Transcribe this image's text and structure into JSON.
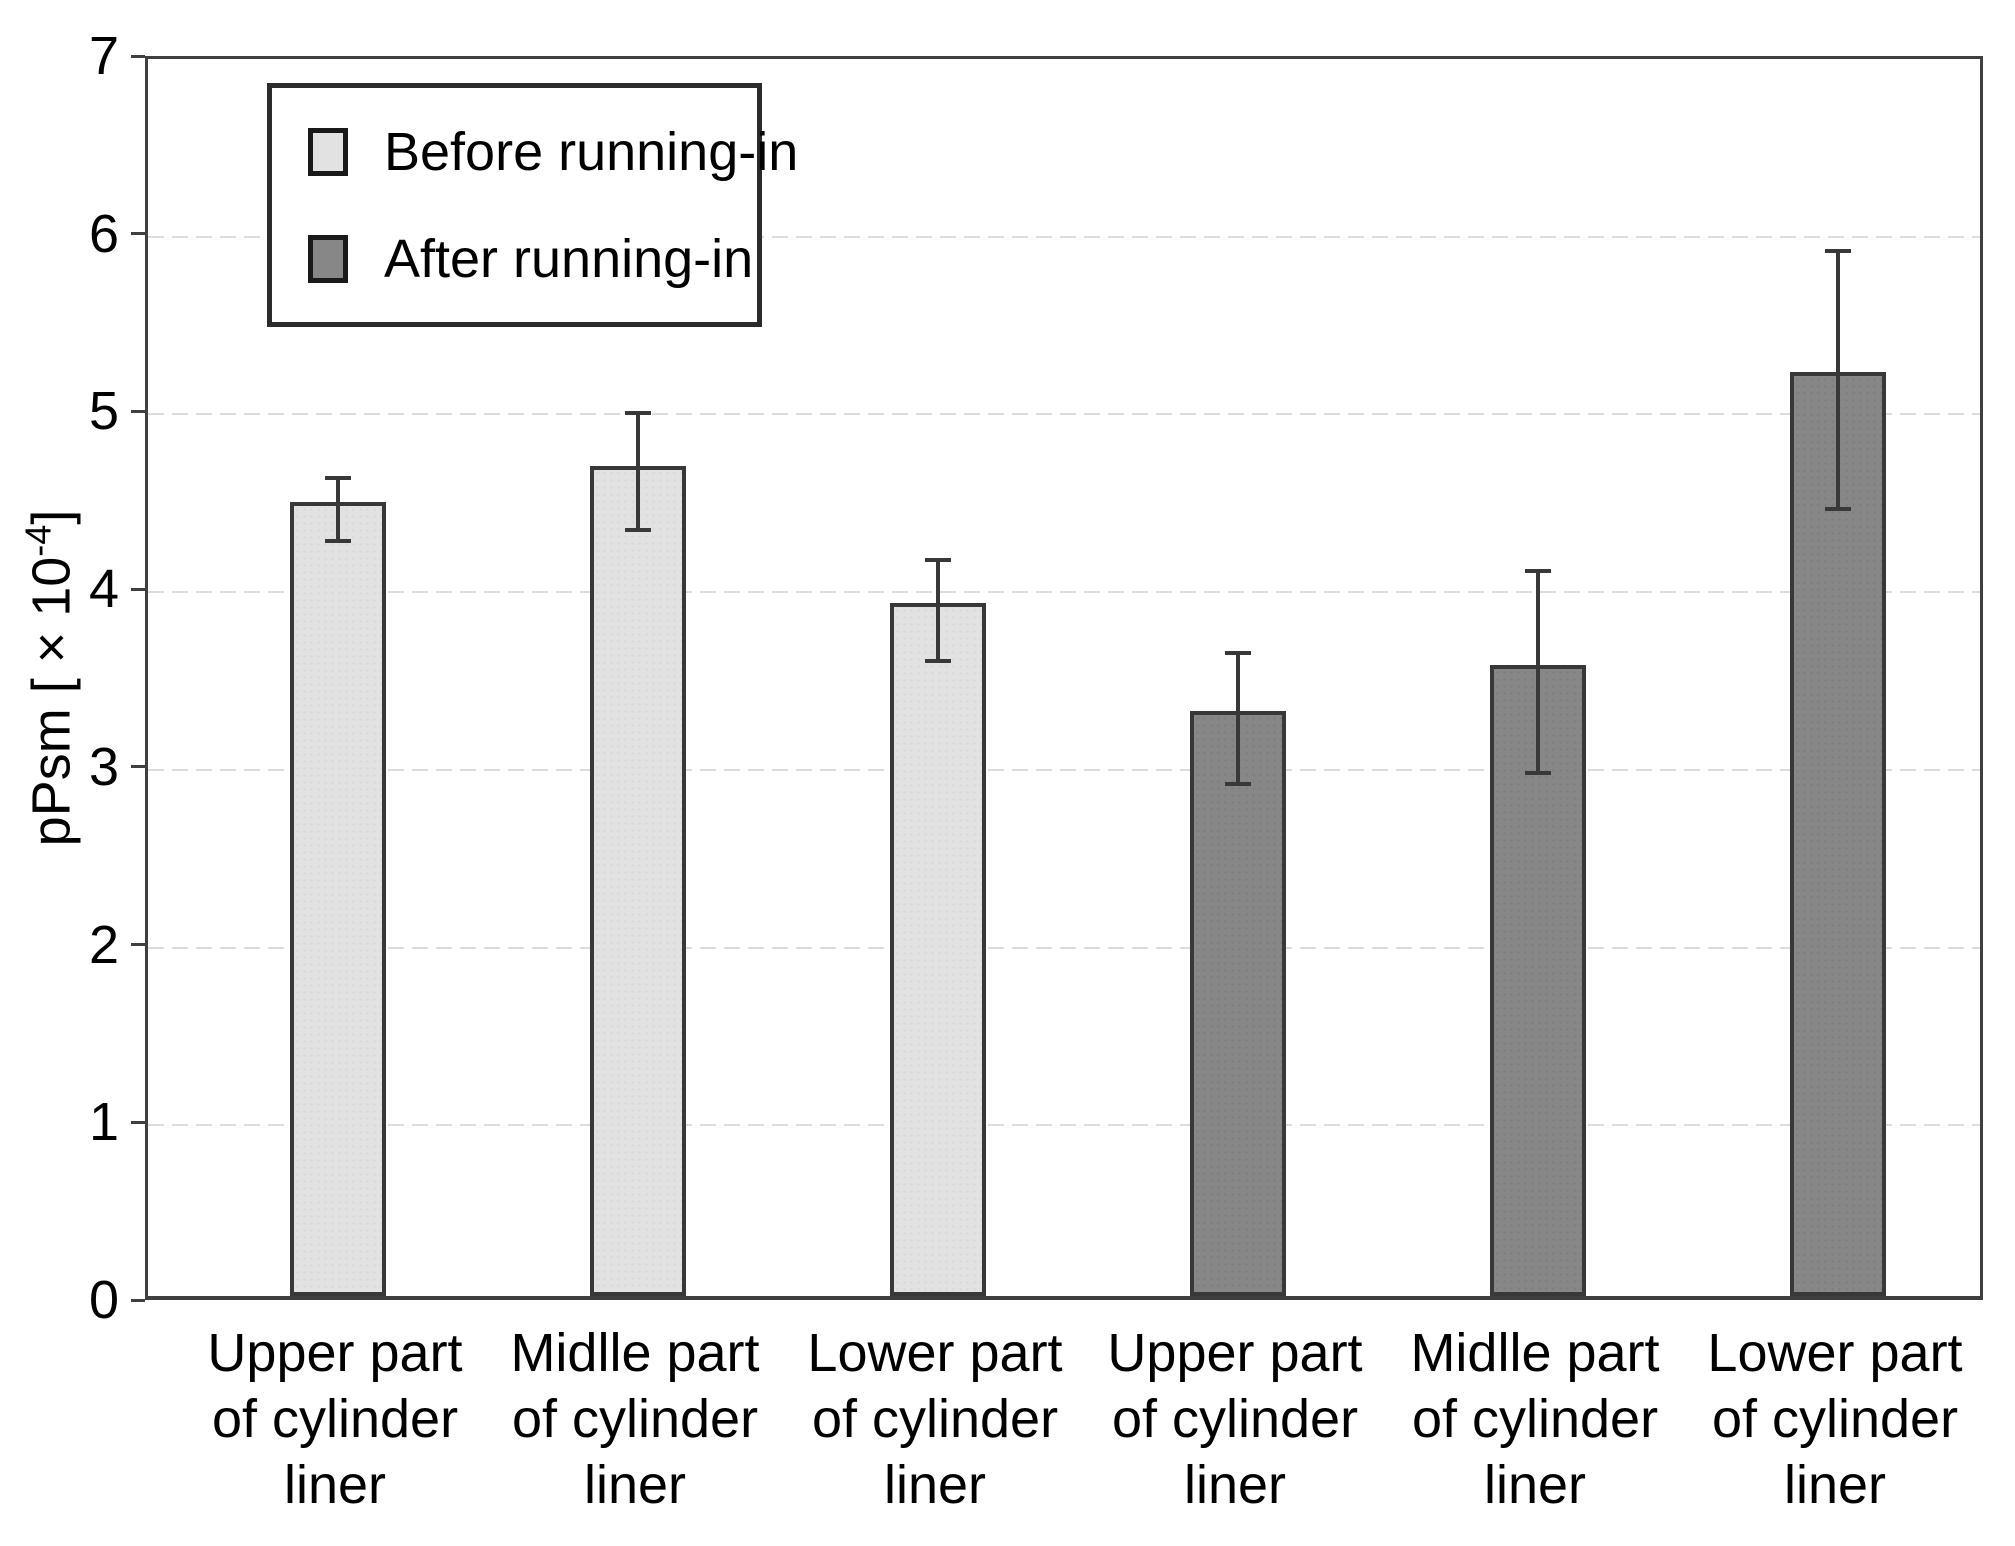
{
  "colors": {
    "background": "#ffffff",
    "axis": "#3f3f3f",
    "gridline": "#dcdcdc",
    "bar_border": "#383838",
    "error_bar": "#383838",
    "text": "#000000",
    "before_fill": "#e2e2e2",
    "after_fill": "#878787"
  },
  "chart_data": {
    "type": "bar",
    "title": "",
    "ylabel": "pPsm [ × 10^-4 ]",
    "ylabel_prefix": "pPsm [ × 10",
    "ylabel_superscript": "-4",
    "ylabel_suffix": "]",
    "ylim": [
      0,
      7
    ],
    "yticks": [
      0,
      1,
      2,
      3,
      4,
      5,
      6,
      7
    ],
    "grid": "horizontal dashed light-gray at each integer",
    "legend_position": "top-left inside plot",
    "groups": [
      {
        "name": "Before running-in",
        "color": "#e2e2e2"
      },
      {
        "name": "After running-in",
        "color": "#878787"
      }
    ],
    "categories": [
      "Upper part of cylinder liner",
      "Midlle part of cylinder liner",
      "Lower part of cylinder liner",
      "Upper part of cylinder liner",
      "Midlle part of cylinder liner",
      "Lower part of cylinder liner"
    ],
    "bars": [
      {
        "label_lines": [
          "Upper part",
          "of cylinder",
          "liner"
        ],
        "group": 0,
        "value": 4.47,
        "err_low": 4.29,
        "err_high": 4.64
      },
      {
        "label_lines": [
          "Midlle part",
          "of cylinder",
          "liner"
        ],
        "group": 0,
        "value": 4.67,
        "err_low": 4.35,
        "err_high": 5.01
      },
      {
        "label_lines": [
          "Lower part",
          "of cylinder",
          "liner"
        ],
        "group": 0,
        "value": 3.9,
        "err_low": 3.61,
        "err_high": 4.18
      },
      {
        "label_lines": [
          "Upper part",
          "of cylinder",
          "liner"
        ],
        "group": 1,
        "value": 3.29,
        "err_low": 2.92,
        "err_high": 3.66
      },
      {
        "label_lines": [
          "Midlle part",
          "of cylinder",
          "liner"
        ],
        "group": 1,
        "value": 3.55,
        "err_low": 2.98,
        "err_high": 4.12
      },
      {
        "label_lines": [
          "Lower part",
          "of cylinder",
          "liner"
        ],
        "group": 1,
        "value": 5.2,
        "err_low": 4.47,
        "err_high": 5.92
      }
    ]
  }
}
